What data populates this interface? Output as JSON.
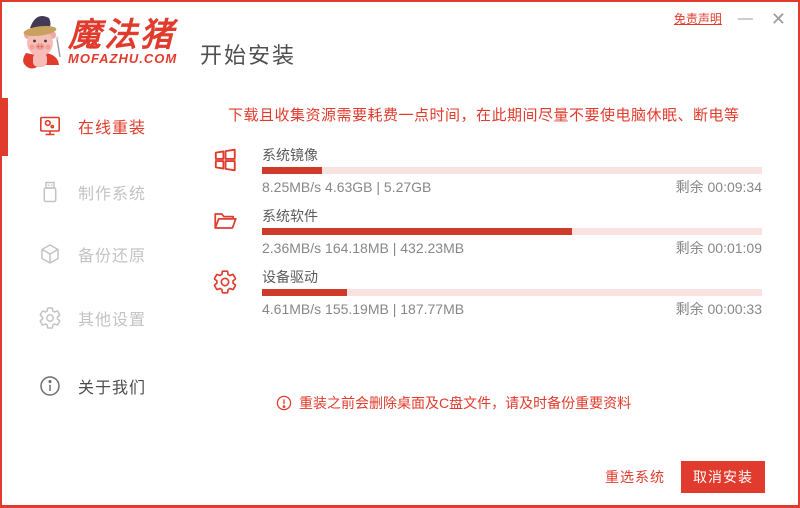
{
  "colors": {
    "accent": "#e03b2c",
    "progress_fill": "#cf3a2a",
    "progress_track": "#f9e2e0",
    "inactive_gray": "#c3c3c3"
  },
  "header": {
    "logo_title": "魔法猪",
    "logo_subtitle": "MOFAZHU.COM",
    "page_title": "开始安装",
    "disclaimer_link": "免责声明",
    "minimize_glyph": "—",
    "close_glyph": "✕"
  },
  "sidebar": {
    "items": [
      {
        "label": "在线重装",
        "icon": "monitor-icon",
        "state": "active"
      },
      {
        "label": "制作系统",
        "icon": "usb-icon",
        "state": "disabled"
      },
      {
        "label": "备份还原",
        "icon": "backup-icon",
        "state": "disabled"
      },
      {
        "label": "其他设置",
        "icon": "settings-icon",
        "state": "disabled"
      },
      {
        "label": "关于我们",
        "icon": "info-icon",
        "state": "normal"
      }
    ]
  },
  "main": {
    "notice": "下载且收集资源需要耗费一点时间，在此期间尽量不要使电脑休眠、断电等",
    "downloads": [
      {
        "title": "系统镜像",
        "icon": "windows-icon",
        "stats": "8.25MB/s 4.63GB | 5.27GB",
        "remaining": "剩余 00:09:34",
        "progress_percent": 12
      },
      {
        "title": "系统软件",
        "icon": "folder-open-icon",
        "stats": "2.36MB/s 164.18MB | 432.23MB",
        "remaining": "剩余 00:01:09",
        "progress_percent": 62
      },
      {
        "title": "设备驱动",
        "icon": "gear-icon",
        "stats": "4.61MB/s 155.19MB | 187.77MB",
        "remaining": "剩余 00:00:33",
        "progress_percent": 17
      }
    ],
    "warning": "重装之前会删除桌面及C盘文件，请及时备份重要资料"
  },
  "footer": {
    "reselect_label": "重选系统",
    "cancel_label": "取消安装"
  }
}
